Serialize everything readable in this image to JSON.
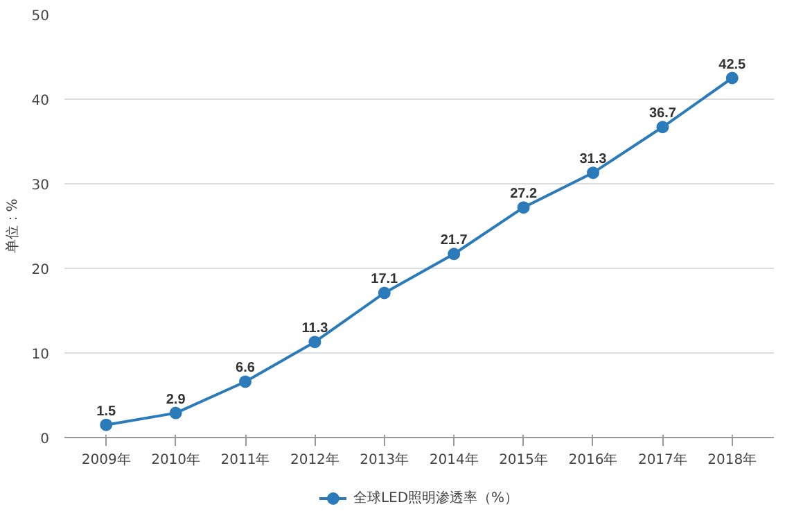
{
  "chart_data": {
    "type": "line",
    "ylabel": "单位：%",
    "categories": [
      "2009年",
      "2010年",
      "2011年",
      "2012年",
      "2013年",
      "2014年",
      "2015年",
      "2016年",
      "2017年",
      "2018年"
    ],
    "series": [
      {
        "name": "全球LED照明渗透率（%）",
        "color": "#2b7bba",
        "values": [
          1.5,
          2.9,
          6.6,
          11.3,
          17.1,
          21.7,
          27.2,
          31.3,
          36.7,
          42.5
        ]
      }
    ],
    "ylim": [
      0,
      50
    ],
    "yticks": [
      0,
      10,
      20,
      30,
      40,
      50
    ],
    "grid": "y",
    "legend": "bottom",
    "marker": "circle",
    "line_style": "solid",
    "data_labels": true
  }
}
